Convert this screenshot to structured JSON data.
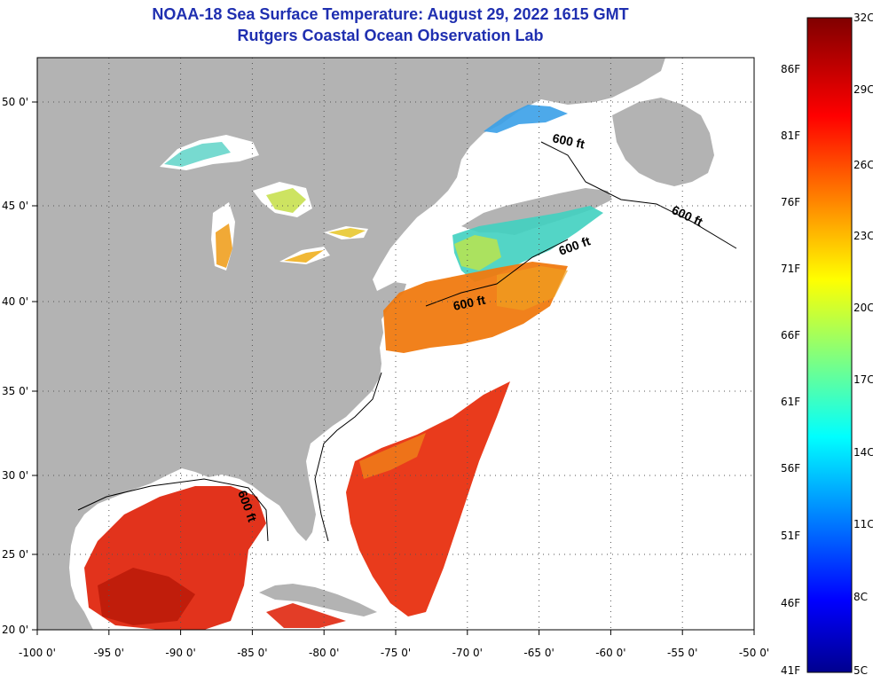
{
  "title": {
    "line1": "NOAA-18 Sea Surface Temperature:  August 29, 2022 1615 GMT",
    "line2": "Rutgers Coastal Ocean Observation Lab"
  },
  "map": {
    "lon_range": [
      -100,
      -50
    ],
    "lat_range": [
      20,
      52
    ],
    "lon_ticks": [
      "-100 0'",
      "-95 0'",
      "-90 0'",
      "-85 0'",
      "-80 0'",
      "-75 0'",
      "-70 0'",
      "-65 0'",
      "-60 0'",
      "-55 0'",
      "-50 0'"
    ],
    "lat_ticks": [
      "50 0'",
      "45 0'",
      "40 0'",
      "35 0'",
      "30 0'",
      "25 0'",
      "20 0'"
    ],
    "grid": true,
    "contour_labels": [
      "600 ft",
      "600 ft",
      "600 ft",
      "600 ft",
      "600 ft"
    ],
    "colors": {
      "land": "#b3b3b3",
      "ocean_nodata": "#ffffff"
    }
  },
  "colorbar": {
    "fahrenheit": [
      "86F",
      "81F",
      "76F",
      "71F",
      "66F",
      "61F",
      "56F",
      "51F",
      "46F",
      "41F"
    ],
    "celsius": [
      "32C",
      "29C",
      "26C",
      "23C",
      "20C",
      "17C",
      "14C",
      "11C",
      "8C",
      "5C"
    ]
  }
}
